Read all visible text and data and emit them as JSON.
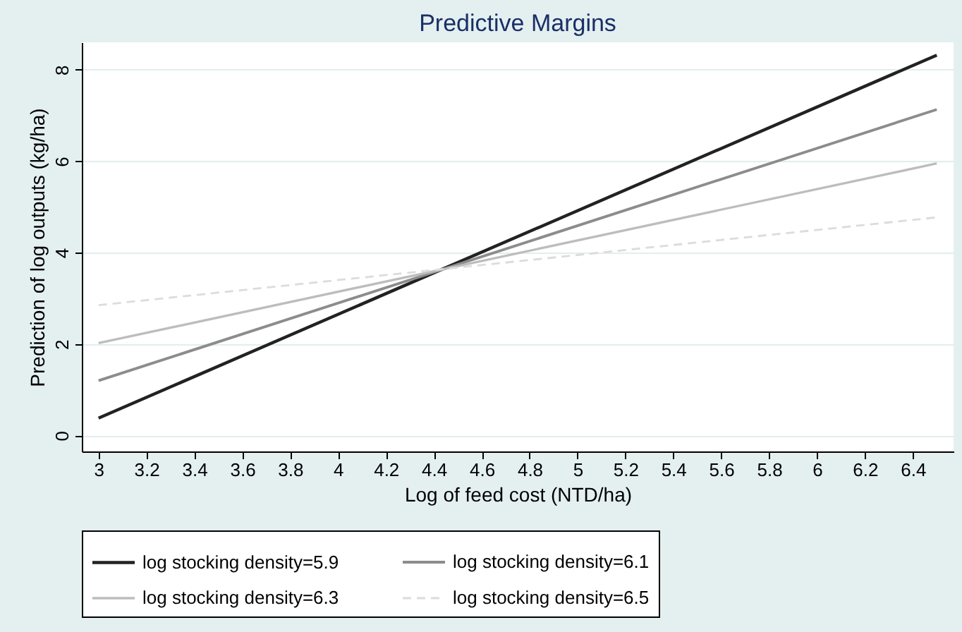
{
  "chart_data": {
    "type": "line",
    "title": "Predictive Margins",
    "xlabel": "Log of feed cost (NTD/ha)",
    "ylabel": "Prediction of log outputs (kg/ha)",
    "x": [
      3,
      6.5
    ],
    "series": [
      {
        "name": "log stocking density=5.9",
        "color": "#222222",
        "values": [
          0.38,
          8.32
        ],
        "line_style": "solid"
      },
      {
        "name": "log stocking density=6.1",
        "color": "#8c8c8c",
        "values": [
          1.2,
          7.13
        ],
        "line_style": "solid"
      },
      {
        "name": "log stocking density=6.3",
        "color": "#bdbdbd",
        "values": [
          2.02,
          5.95
        ],
        "line_style": "solid"
      },
      {
        "name": "log stocking density=6.5",
        "color": "#dcdcdc",
        "values": [
          2.85,
          4.77
        ],
        "line_style": "dashed"
      }
    ],
    "xlim": [
      2.93,
      6.57
    ],
    "ylim": [
      -0.35,
      8.6
    ],
    "xticks": [
      3,
      3.2,
      3.4,
      3.6,
      3.8,
      4,
      4.2,
      4.4,
      4.6,
      4.8,
      5,
      5.2,
      5.4,
      5.6,
      5.8,
      6,
      6.2,
      6.4
    ],
    "yticks": [
      0,
      2,
      4,
      6,
      8
    ],
    "grid": "y",
    "legend": "bottom",
    "marker": "none"
  }
}
